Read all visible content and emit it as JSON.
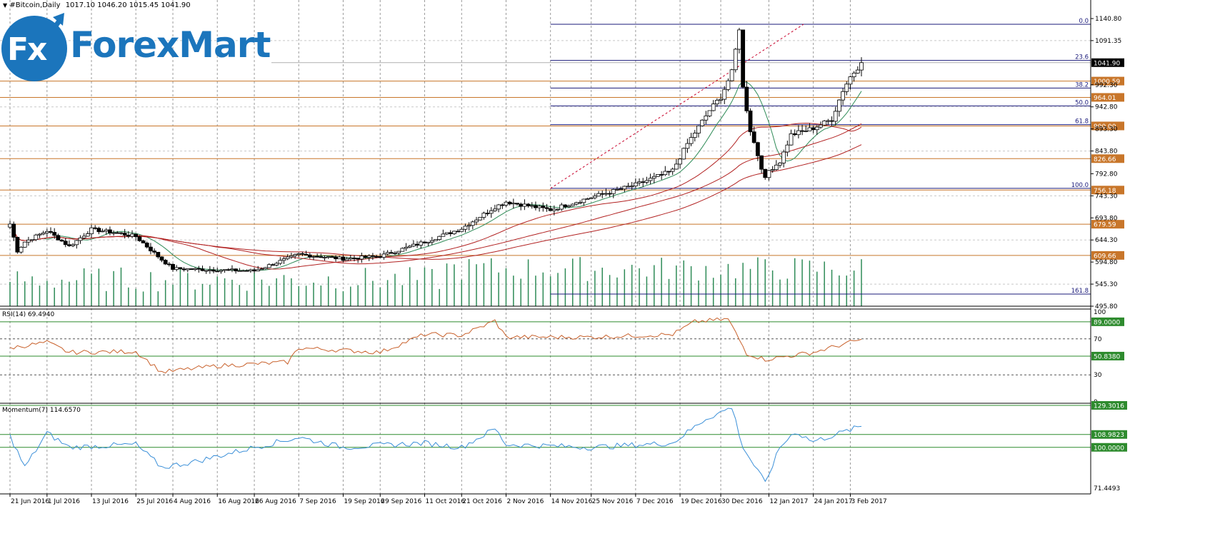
{
  "header": {
    "symbol": "#Bitcoin,Daily",
    "ohlc": "1017.10 1046.20 1015.45 1041.90"
  },
  "logo": {
    "fx": "Fx",
    "name": "ForexMart"
  },
  "colors": {
    "bull": "#ffffff",
    "bear": "#000000",
    "wick": "#000000",
    "fib": "#1a1a7a",
    "sr": "#c8762a",
    "ma_fast": "#2e8b57",
    "ma_slow": "#b22222",
    "volume": "#2e8b57",
    "rsi": "#c8602a",
    "momentum": "#3a8fd8",
    "level": "#2e8b2e",
    "grid": "#9a9a9a",
    "tag_sr": "#c8762a",
    "tag_level": "#2e8b2e"
  },
  "chart_data": [
    {
      "type": "candlestick",
      "title": "#Bitcoin,Daily",
      "x_tick_labels": [
        "21 Jun 2016",
        "1 Jul 2016",
        "13 Jul 2016",
        "25 Jul 2016",
        "4 Aug 2016",
        "16 Aug 2016",
        "26 Aug 2016",
        "7 Sep 2016",
        "19 Sep 2016",
        "29 Sep 2016",
        "11 Oct 2016",
        "21 Oct 2016",
        "2 Nov 2016",
        "14 Nov 2016",
        "25 Nov 2016",
        "7 Dec 2016",
        "19 Dec 2016",
        "30 Dec 2016",
        "12 Jan 2017",
        "24 Jan 2017",
        "3 Feb 2017"
      ],
      "y_tick_labels": [
        "1140.80",
        "1091.35",
        "992.30",
        "942.80",
        "893.30",
        "843.80",
        "792.80",
        "743.30",
        "693.80",
        "644.30",
        "594.80",
        "545.30",
        "495.80"
      ],
      "ylim": [
        495.8,
        1160.0
      ],
      "current_price": "1041.90",
      "fibonacci_levels": [
        {
          "label": "0.0",
          "price": 1128.0
        },
        {
          "label": "23.6",
          "price": 1047.0
        },
        {
          "label": "38.2",
          "price": 985.0
        },
        {
          "label": "50.0",
          "price": 945.0
        },
        {
          "label": "61.8",
          "price": 903.0
        },
        {
          "label": "100.0",
          "price": 760.0
        },
        {
          "label": "161.8",
          "price": 523.0
        }
      ],
      "support_resistance": [
        {
          "label": "1000.59",
          "price": 1000.59
        },
        {
          "label": "964.01",
          "price": 964.01
        },
        {
          "label": "900.00",
          "price": 900.0
        },
        {
          "label": "826.66",
          "price": 826.66
        },
        {
          "label": "756.18",
          "price": 756.18
        },
        {
          "label": "679.59",
          "price": 679.59
        },
        {
          "label": "609.66",
          "price": 609.66
        }
      ],
      "anchors": [
        {
          "date": "21 Jun 2016",
          "close": 680
        },
        {
          "date": "23 Jun 2016",
          "close": 620
        },
        {
          "date": "25 Jun 2016",
          "close": 640
        },
        {
          "date": "1 Jul 2016",
          "close": 665
        },
        {
          "date": "7 Jul 2016",
          "close": 630
        },
        {
          "date": "13 Jul 2016",
          "close": 668
        },
        {
          "date": "20 Jul 2016",
          "close": 660
        },
        {
          "date": "25 Jul 2016",
          "close": 652
        },
        {
          "date": "1 Aug 2016",
          "close": 600
        },
        {
          "date": "4 Aug 2016",
          "close": 580
        },
        {
          "date": "16 Aug 2016",
          "close": 577
        },
        {
          "date": "26 Aug 2016",
          "close": 575
        },
        {
          "date": "7 Sep 2016",
          "close": 612
        },
        {
          "date": "19 Sep 2016",
          "close": 602
        },
        {
          "date": "29 Sep 2016",
          "close": 608
        },
        {
          "date": "11 Oct 2016",
          "close": 640
        },
        {
          "date": "21 Oct 2016",
          "close": 670
        },
        {
          "date": "30 Oct 2016",
          "close": 718
        },
        {
          "date": "2 Nov 2016",
          "close": 730
        },
        {
          "date": "14 Nov 2016",
          "close": 712
        },
        {
          "date": "25 Nov 2016",
          "close": 740
        },
        {
          "date": "7 Dec 2016",
          "close": 768
        },
        {
          "date": "17 Dec 2016",
          "close": 800
        },
        {
          "date": "21 Dec 2016",
          "close": 860
        },
        {
          "date": "27 Dec 2016",
          "close": 935
        },
        {
          "date": "30 Dec 2016",
          "close": 965
        },
        {
          "date": "2 Jan 2017",
          "close": 1020
        },
        {
          "date": "4 Jan 2017",
          "close": 1120
        },
        {
          "date": "5 Jan 2017",
          "close": 985
        },
        {
          "date": "7 Jan 2017",
          "close": 890
        },
        {
          "date": "11 Jan 2017",
          "close": 780
        },
        {
          "date": "12 Jan 2017",
          "close": 800
        },
        {
          "date": "15 Jan 2017",
          "close": 820
        },
        {
          "date": "18 Jan 2017",
          "close": 880
        },
        {
          "date": "24 Jan 2017",
          "close": 895
        },
        {
          "date": "29 Jan 2017",
          "close": 915
        },
        {
          "date": "1 Feb 2017",
          "close": 980
        },
        {
          "date": "3 Feb 2017",
          "close": 1010
        },
        {
          "date": "6 Feb 2017",
          "close": 1041.9
        }
      ],
      "grid": true
    },
    {
      "type": "line",
      "title": "RSI(14) 69.4940",
      "ylim": [
        0,
        100
      ],
      "y_tick_labels": [
        "100",
        "70",
        "30",
        "0"
      ],
      "levels": [
        {
          "label": "89.0000",
          "value": 89
        },
        {
          "label": "50.8380",
          "value": 50.838
        }
      ],
      "series": [
        {
          "name": "RSI(14)",
          "anchors": [
            {
              "date": "21 Jun 2016",
              "value": 60
            },
            {
              "date": "1 Jul 2016",
              "value": 66
            },
            {
              "date": "7 Jul 2016",
              "value": 55
            },
            {
              "date": "25 Jul 2016",
              "value": 56
            },
            {
              "date": "1 Aug 2016",
              "value": 33
            },
            {
              "date": "16 Aug 2016",
              "value": 40
            },
            {
              "date": "4 Sep 2016",
              "value": 44
            },
            {
              "date": "7 Sep 2016",
              "value": 60
            },
            {
              "date": "29 Sep 2016",
              "value": 55
            },
            {
              "date": "11 Oct 2016",
              "value": 75
            },
            {
              "date": "21 Oct 2016",
              "value": 74
            },
            {
              "date": "30 Oct 2016",
              "value": 90
            },
            {
              "date": "2 Nov 2016",
              "value": 72
            },
            {
              "date": "25 Nov 2016",
              "value": 72
            },
            {
              "date": "17 Dec 2016",
              "value": 75
            },
            {
              "date": "23 Dec 2016",
              "value": 89
            },
            {
              "date": "1 Jan 2017",
              "value": 92
            },
            {
              "date": "6 Jan 2017",
              "value": 54
            },
            {
              "date": "11 Jan 2017",
              "value": 47
            },
            {
              "date": "24 Jan 2017",
              "value": 55
            },
            {
              "date": "6 Feb 2017",
              "value": 69.494
            }
          ]
        }
      ]
    },
    {
      "type": "line",
      "title": "Momentum(7) 114.6570",
      "ylim": [
        71.4493,
        129.3016
      ],
      "y_tick_labels": [
        "71.4493"
      ],
      "levels": [
        {
          "label": "129.3016",
          "value": 129.3016
        },
        {
          "label": "108.9823",
          "value": 108.9823
        },
        {
          "label": "100.0000",
          "value": 100
        }
      ],
      "series": [
        {
          "name": "Momentum(7)",
          "anchors": [
            {
              "date": "21 Jun 2016",
              "value": 108
            },
            {
              "date": "25 Jun 2016",
              "value": 86
            },
            {
              "date": "1 Jul 2016",
              "value": 110
            },
            {
              "date": "7 Jul 2016",
              "value": 100
            },
            {
              "date": "25 Jul 2016",
              "value": 102
            },
            {
              "date": "1 Aug 2016",
              "value": 86
            },
            {
              "date": "10 Aug 2016",
              "value": 90
            },
            {
              "date": "26 Aug 2016",
              "value": 100
            },
            {
              "date": "7 Sep 2016",
              "value": 107
            },
            {
              "date": "19 Sep 2016",
              "value": 100
            },
            {
              "date": "11 Oct 2016",
              "value": 103
            },
            {
              "date": "21 Oct 2016",
              "value": 100
            },
            {
              "date": "30 Oct 2016",
              "value": 113
            },
            {
              "date": "2 Nov 2016",
              "value": 102
            },
            {
              "date": "25 Nov 2016",
              "value": 100
            },
            {
              "date": "17 Dec 2016",
              "value": 103
            },
            {
              "date": "26 Dec 2016",
              "value": 120
            },
            {
              "date": "2 Jan 2017",
              "value": 128
            },
            {
              "date": "5 Jan 2017",
              "value": 100
            },
            {
              "date": "11 Jan 2017",
              "value": 75
            },
            {
              "date": "15 Jan 2017",
              "value": 100
            },
            {
              "date": "19 Jan 2017",
              "value": 111
            },
            {
              "date": "24 Jan 2017",
              "value": 104
            },
            {
              "date": "6 Feb 2017",
              "value": 114.657
            }
          ]
        }
      ]
    }
  ]
}
